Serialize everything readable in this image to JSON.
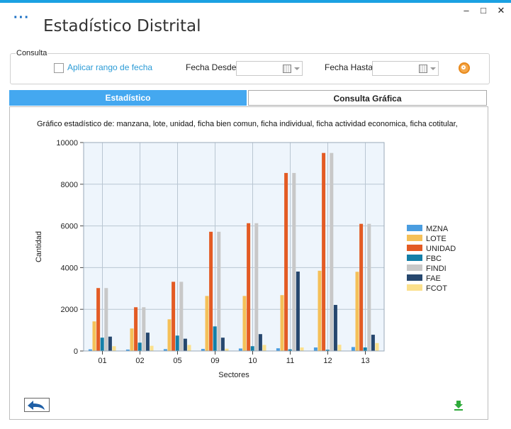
{
  "window": {
    "title": "Estadístico Distrital",
    "menu_icon": "ellipsis-icon",
    "minimize": "–",
    "maximize": "□",
    "close": "✕"
  },
  "filters": {
    "group_label": "Consulta",
    "apply_range_label": "Aplicar rango de fecha",
    "apply_range_checked": false,
    "fecha_desde_label": "Fecha Desde",
    "fecha_desde_value": "",
    "fecha_hasta_label": "Fecha Hasta",
    "fecha_hasta_value": "",
    "search_icon": "search-icon"
  },
  "tabs": [
    {
      "label": "Estadístico",
      "active": true
    },
    {
      "label": "Consulta Gráfica",
      "active": false
    }
  ],
  "chart_caption": "Gráfico estadístico de: manzana, lote, unidad, ficha bien comun, ficha individual, ficha actividad economica, ficha cotitular,",
  "colors": {
    "accent": "#1ba1e2",
    "tab_active": "#44a8f0",
    "plot_bg": "#eef5fc"
  },
  "chart_data": {
    "type": "bar",
    "xlabel": "Sectores",
    "ylabel": "Cantidad",
    "ylim": [
      0,
      10000
    ],
    "yticks": [
      0,
      2000,
      4000,
      6000,
      8000,
      10000
    ],
    "categories": [
      "01",
      "02",
      "05",
      "09",
      "10",
      "11",
      "12",
      "13"
    ],
    "legend_position": "right",
    "grid": true,
    "series": [
      {
        "name": "MZNA",
        "color": "#4a9de0",
        "values": [
          80,
          70,
          90,
          100,
          120,
          130,
          170,
          190
        ]
      },
      {
        "name": "LOTE",
        "color": "#f5c058",
        "values": [
          1420,
          1080,
          1520,
          2640,
          2640,
          2680,
          3850,
          3800
        ]
      },
      {
        "name": "UNIDAD",
        "color": "#e35b24",
        "values": [
          3020,
          2100,
          3320,
          5720,
          6130,
          8540,
          9500,
          6100
        ]
      },
      {
        "name": "FBC",
        "color": "#137fa8",
        "values": [
          640,
          400,
          740,
          1180,
          230,
          80,
          60,
          170
        ]
      },
      {
        "name": "FINDI",
        "color": "#c8c8c8",
        "values": [
          3020,
          2100,
          3320,
          5720,
          6130,
          8540,
          9500,
          6100
        ]
      },
      {
        "name": "FAE",
        "color": "#26476e",
        "values": [
          690,
          880,
          590,
          640,
          810,
          3810,
          2210,
          780
        ]
      },
      {
        "name": "FCOT",
        "color": "#fbe08c",
        "values": [
          230,
          250,
          290,
          110,
          290,
          170,
          300,
          380
        ]
      }
    ]
  },
  "footer": {
    "back_icon": "back-arrow-icon",
    "download_icon": "download-icon"
  }
}
